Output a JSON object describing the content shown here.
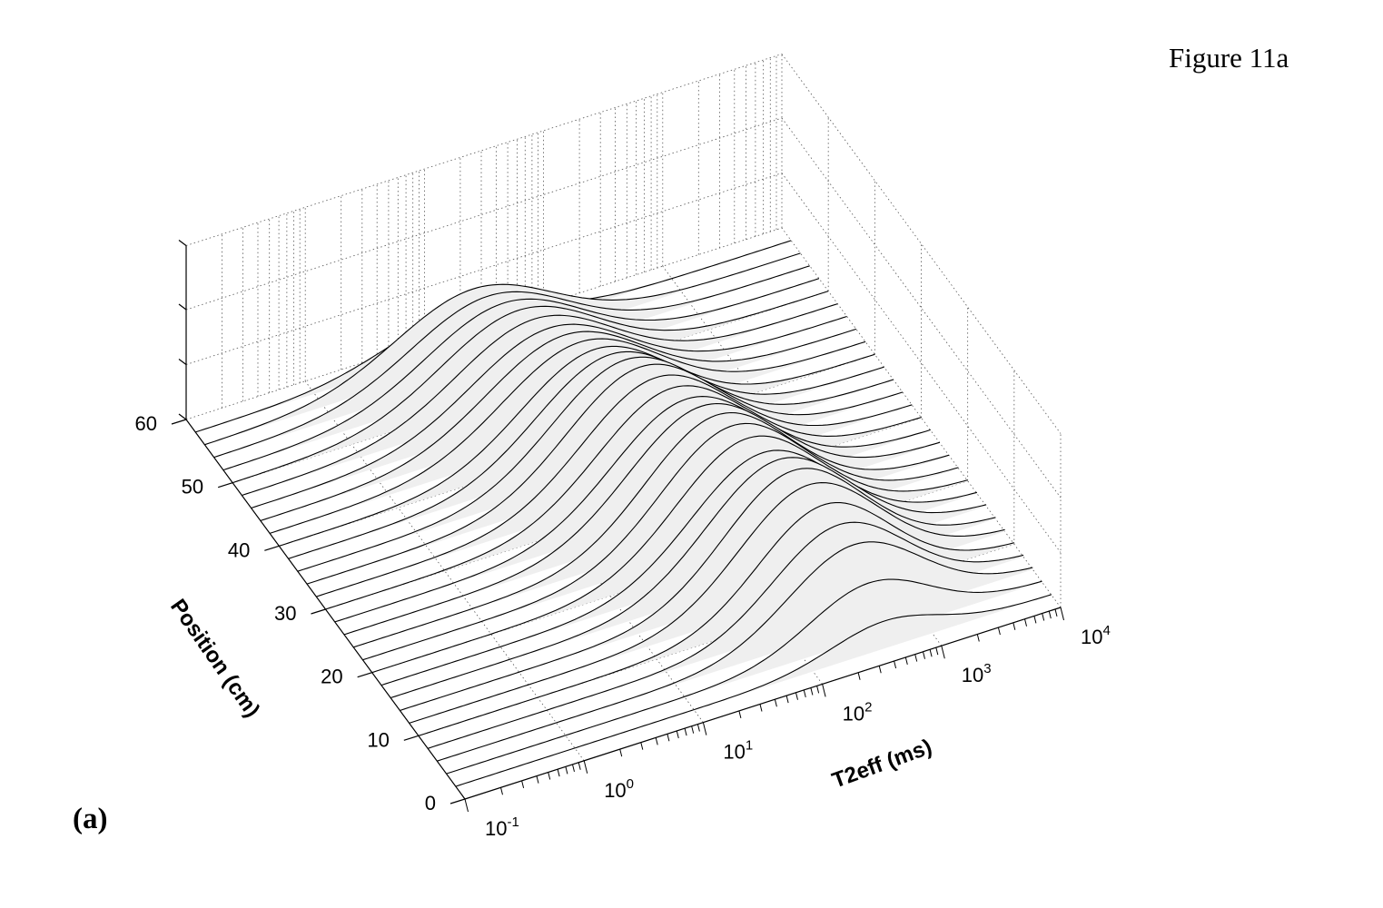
{
  "figure": {
    "title": "Figure 11a",
    "panel": "(a)"
  },
  "chart_data": {
    "type": "waterfall",
    "xlabel": "T2eff (ms)",
    "ylabel": "Position (cm)",
    "zlabel": "",
    "x_scale": "log",
    "xlim": [
      0.1,
      10000
    ],
    "ylim": [
      0,
      60
    ],
    "x_ticks": [
      {
        "value": 0.1,
        "base": "10",
        "exp": "-1"
      },
      {
        "value": 1,
        "base": "10",
        "exp": "0"
      },
      {
        "value": 10,
        "base": "10",
        "exp": "1"
      },
      {
        "value": 100,
        "base": "10",
        "exp": "2"
      },
      {
        "value": 1000,
        "base": "10",
        "exp": "3"
      },
      {
        "value": 10000,
        "base": "10",
        "exp": "4"
      }
    ],
    "y_ticks": [
      "0",
      "10",
      "20",
      "30",
      "40",
      "50",
      "60"
    ],
    "y_tick_values": [
      0,
      10,
      20,
      30,
      40,
      50,
      60
    ],
    "grid": true,
    "fill_color": "#efefef",
    "line_color": "#000000",
    "positions_cm": [
      2,
      4,
      6,
      8,
      10,
      12,
      14,
      16,
      18,
      20,
      22,
      24,
      26,
      28,
      30,
      32,
      34,
      36,
      38,
      40,
      42,
      44,
      46,
      48,
      50,
      52,
      54,
      56,
      58
    ],
    "peak_log10_t2": [
      2.6,
      2.55,
      2.5,
      2.45,
      2.4,
      2.35,
      2.3,
      2.25,
      2.2,
      2.15,
      2.1,
      2.05,
      2.0,
      1.95,
      1.9,
      1.85,
      1.8,
      1.75,
      1.7,
      1.65,
      1.6,
      1.55,
      1.5,
      1.45,
      1.4,
      1.35,
      1.3,
      1.25,
      1.2
    ],
    "peak_amplitude": [
      0.15,
      0.3,
      0.45,
      0.5,
      0.55,
      0.6,
      0.62,
      0.62,
      0.6,
      0.62,
      0.63,
      0.63,
      0.62,
      0.6,
      0.6,
      0.6,
      0.6,
      0.58,
      0.55,
      0.52,
      0.5,
      0.48,
      0.46,
      0.45,
      0.44,
      0.42,
      0.4,
      0.38,
      0.2
    ],
    "peak_width_decades": [
      0.45,
      0.5,
      0.55,
      0.55,
      0.55,
      0.58,
      0.58,
      0.6,
      0.6,
      0.6,
      0.6,
      0.6,
      0.62,
      0.62,
      0.62,
      0.62,
      0.62,
      0.62,
      0.62,
      0.62,
      0.65,
      0.65,
      0.65,
      0.65,
      0.65,
      0.65,
      0.65,
      0.65,
      0.6
    ]
  }
}
